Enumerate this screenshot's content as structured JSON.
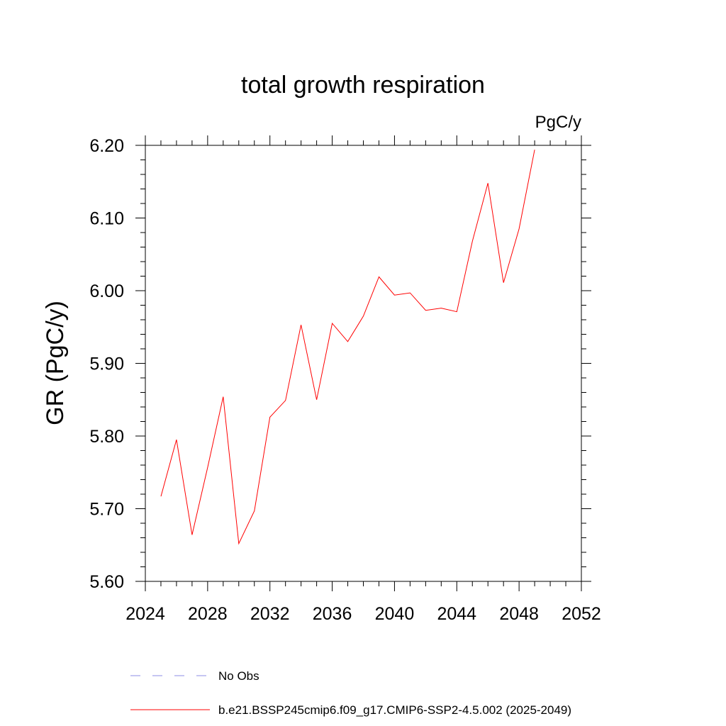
{
  "chart_data": {
    "type": "line",
    "title": "total growth respiration",
    "units": "PgC/y",
    "ylabel": "GR  (PgC/y)",
    "xlabel": "",
    "xlim": [
      2024,
      2052
    ],
    "ylim": [
      5.6,
      6.2
    ],
    "x_ticks": [
      "2024",
      "2028",
      "2032",
      "2036",
      "2040",
      "2044",
      "2048",
      "2052"
    ],
    "y_ticks": [
      "5.60",
      "5.70",
      "5.80",
      "5.90",
      "6.00",
      "6.10",
      "6.20"
    ],
    "series": [
      {
        "name": "b.e21.BSSP245cmip6.f09_g17.CMIP6-SSP2-4.5.002 (2025-2049)",
        "color": "#ff0000",
        "style": "solid",
        "x": [
          2025,
          2026,
          2027,
          2028,
          2029,
          2030,
          2031,
          2032,
          2033,
          2034,
          2035,
          2036,
          2037,
          2038,
          2039,
          2040,
          2041,
          2042,
          2043,
          2044,
          2045,
          2046,
          2047,
          2048,
          2049
        ],
        "y": [
          5.717,
          5.795,
          5.664,
          5.757,
          5.854,
          5.652,
          5.697,
          5.826,
          5.849,
          5.953,
          5.85,
          5.955,
          5.93,
          5.965,
          6.019,
          5.994,
          5.997,
          5.973,
          5.976,
          5.971,
          6.068,
          6.148,
          6.011,
          6.085,
          6.194
        ]
      }
    ],
    "legend": [
      {
        "label": "No Obs",
        "color": "#8c8ce6",
        "style": "dashed"
      },
      {
        "label": "b.e21.BSSP245cmip6.f09_g17.CMIP6-SSP2-4.5.002 (2025-2049)",
        "color": "#ff0000",
        "style": "solid"
      }
    ],
    "legend_position": "bottom",
    "grid": false
  }
}
